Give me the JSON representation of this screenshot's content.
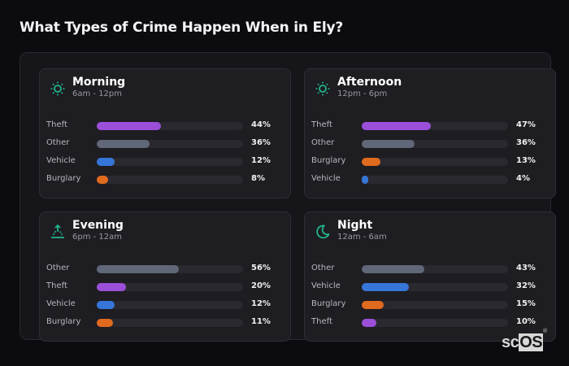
{
  "page": {
    "title": "What Types of Crime Happen When in Ely?"
  },
  "colors": {
    "theft": "#9b4fd9",
    "other": "#5f6778",
    "vehicle": "#3576d8",
    "burglary": "#e06a1e",
    "icon_accent": "#22b58c"
  },
  "cards": [
    {
      "name": "Morning",
      "range": "6am - 12pm",
      "icon": "sun-icon",
      "rows": [
        {
          "label": "Theft",
          "value": 44,
          "pct": "44%",
          "color": "#9b4fd9"
        },
        {
          "label": "Other",
          "value": 36,
          "pct": "36%",
          "color": "#5f6778"
        },
        {
          "label": "Vehicle",
          "value": 12,
          "pct": "12%",
          "color": "#3576d8"
        },
        {
          "label": "Burglary",
          "value": 8,
          "pct": "8%",
          "color": "#e06a1e"
        }
      ]
    },
    {
      "name": "Afternoon",
      "range": "12pm - 6pm",
      "icon": "sun-icon",
      "rows": [
        {
          "label": "Theft",
          "value": 47,
          "pct": "47%",
          "color": "#9b4fd9"
        },
        {
          "label": "Other",
          "value": 36,
          "pct": "36%",
          "color": "#5f6778"
        },
        {
          "label": "Burglary",
          "value": 13,
          "pct": "13%",
          "color": "#e06a1e"
        },
        {
          "label": "Vehicle",
          "value": 4,
          "pct": "4%",
          "color": "#3576d8"
        }
      ]
    },
    {
      "name": "Evening",
      "range": "6pm - 12am",
      "icon": "sunset-icon",
      "rows": [
        {
          "label": "Other",
          "value": 56,
          "pct": "56%",
          "color": "#5f6778"
        },
        {
          "label": "Theft",
          "value": 20,
          "pct": "20%",
          "color": "#9b4fd9"
        },
        {
          "label": "Vehicle",
          "value": 12,
          "pct": "12%",
          "color": "#3576d8"
        },
        {
          "label": "Burglary",
          "value": 11,
          "pct": "11%",
          "color": "#e06a1e"
        }
      ]
    },
    {
      "name": "Night",
      "range": "12am - 6am",
      "icon": "moon-icon",
      "rows": [
        {
          "label": "Other",
          "value": 43,
          "pct": "43%",
          "color": "#5f6778"
        },
        {
          "label": "Vehicle",
          "value": 32,
          "pct": "32%",
          "color": "#3576d8"
        },
        {
          "label": "Burglary",
          "value": 15,
          "pct": "15%",
          "color": "#e06a1e"
        },
        {
          "label": "Theft",
          "value": 10,
          "pct": "10%",
          "color": "#9b4fd9"
        }
      ]
    }
  ],
  "logo": {
    "prefix": "sc",
    "suffix": "OS",
    "mark": "®"
  }
}
